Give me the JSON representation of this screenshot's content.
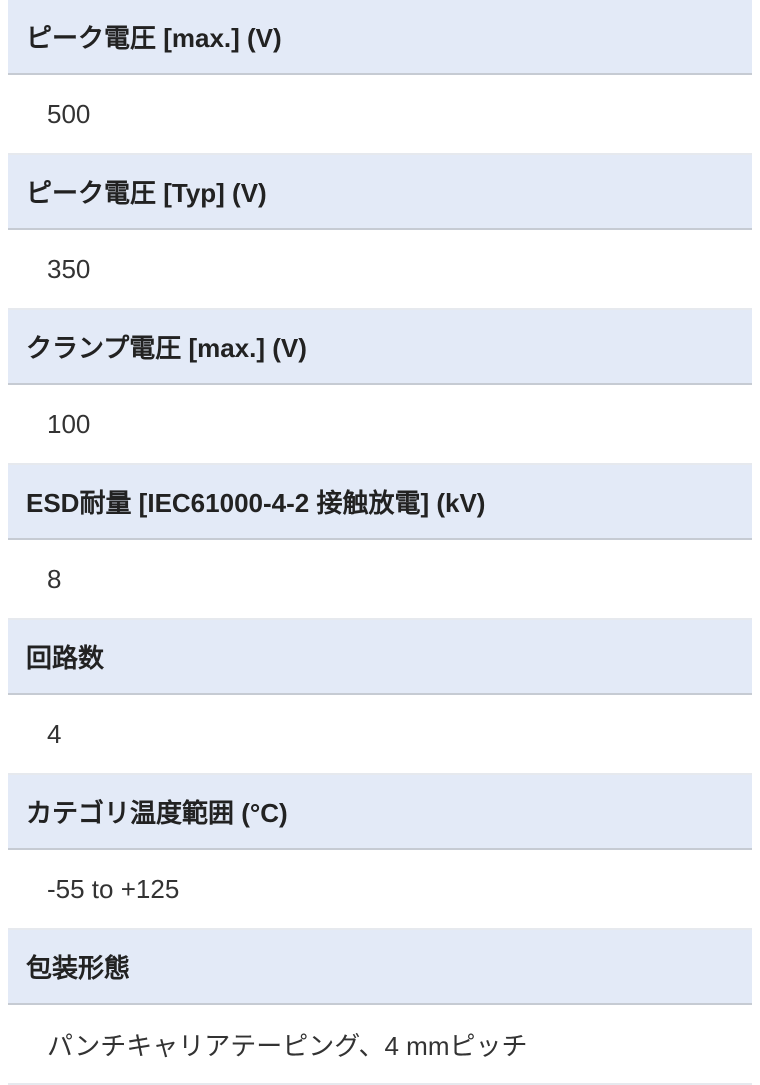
{
  "specs": [
    {
      "label": "ピーク電圧 [max.] (V)",
      "value": "500"
    },
    {
      "label": "ピーク電圧 [Typ] (V)",
      "value": "350"
    },
    {
      "label": "クランプ電圧 [max.] (V)",
      "value": "100"
    },
    {
      "label": "ESD耐量 [IEC61000-4-2 接触放電] (kV)",
      "value": "8"
    },
    {
      "label": "回路数",
      "value": "4"
    },
    {
      "label": "カテゴリ温度範囲 (°C)",
      "value": "-55 to +125"
    },
    {
      "label": "包装形態",
      "value": "パンチキャリアテーピング、4 mmピッチ"
    }
  ],
  "colors": {
    "header_bg": "#e3eaf7",
    "divider": "#c6cbd3"
  }
}
